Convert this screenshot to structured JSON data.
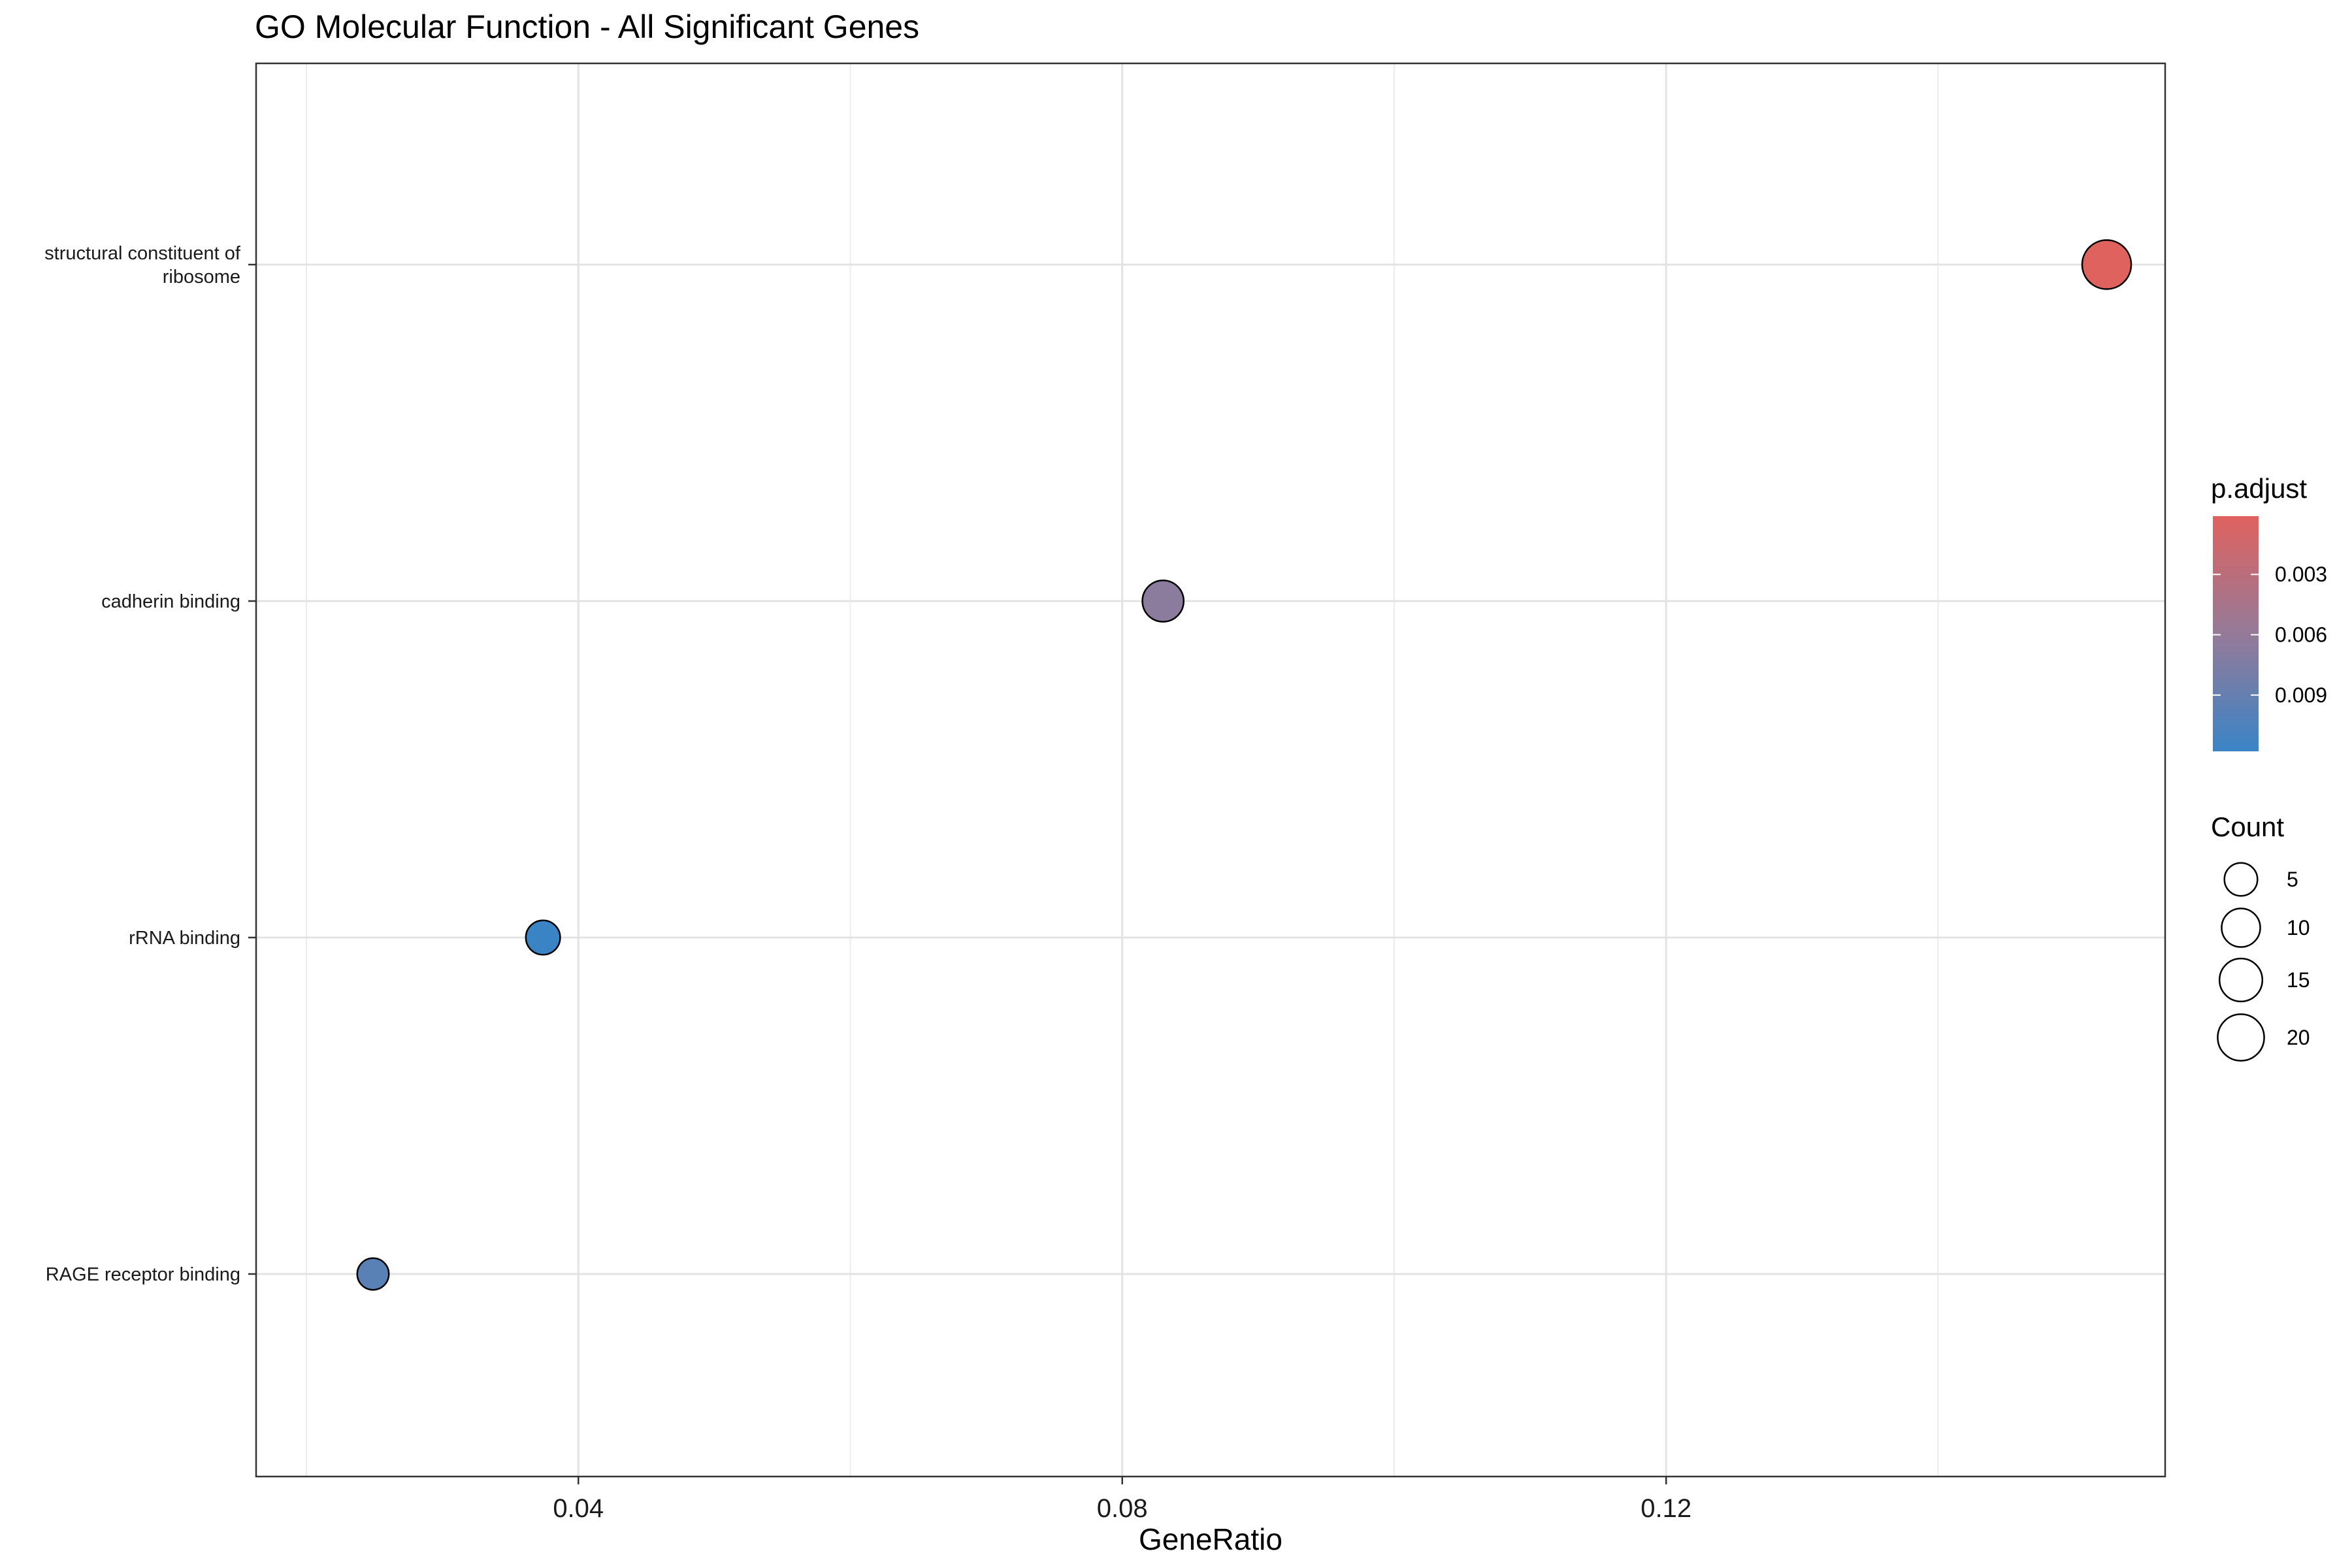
{
  "chart_data": {
    "type": "scatter",
    "title": "GO Molecular Function - All Significant Genes",
    "xlabel": "GeneRatio",
    "ylabel": "",
    "xlim": [
      0.0163,
      0.1567
    ],
    "x_ticks": [
      0.04,
      0.08,
      0.12
    ],
    "x_tick_labels": [
      "0.04",
      "0.08",
      "0.12"
    ],
    "x_minor_ticks": [
      0.02,
      0.06,
      0.1,
      0.14
    ],
    "categories": [
      [
        "structural constituent of",
        "ribosome"
      ],
      [
        "cadherin binding"
      ],
      [
        "rRNA binding"
      ],
      [
        "RAGE receptor binding"
      ]
    ],
    "points": [
      {
        "term": "structural constituent of ribosome",
        "gene_ratio": 0.1524,
        "count": 24,
        "p_adjust": 0.0001
      },
      {
        "term": "cadherin binding",
        "gene_ratio": 0.083,
        "count": 13,
        "p_adjust": 0.0066
      },
      {
        "term": "rRNA binding",
        "gene_ratio": 0.0374,
        "count": 6,
        "p_adjust": 0.0118
      },
      {
        "term": "RAGE receptor binding",
        "gene_ratio": 0.0249,
        "count": 4,
        "p_adjust": 0.0098
      }
    ],
    "color_legend": {
      "title": "p.adjust",
      "range": [
        0.0001,
        0.0118
      ],
      "low_color": "#E0625F",
      "mid_color": "#957A98",
      "high_color": "#3A84C6",
      "ticks": [
        0.003,
        0.006,
        0.009
      ],
      "tick_labels": [
        "0.003",
        "0.006",
        "0.009"
      ]
    },
    "size_legend": {
      "title": "Count",
      "values": [
        5,
        10,
        15,
        20
      ],
      "labels": [
        "5",
        "10",
        "15",
        "20"
      ]
    },
    "grid": true,
    "legend_position": "right"
  }
}
